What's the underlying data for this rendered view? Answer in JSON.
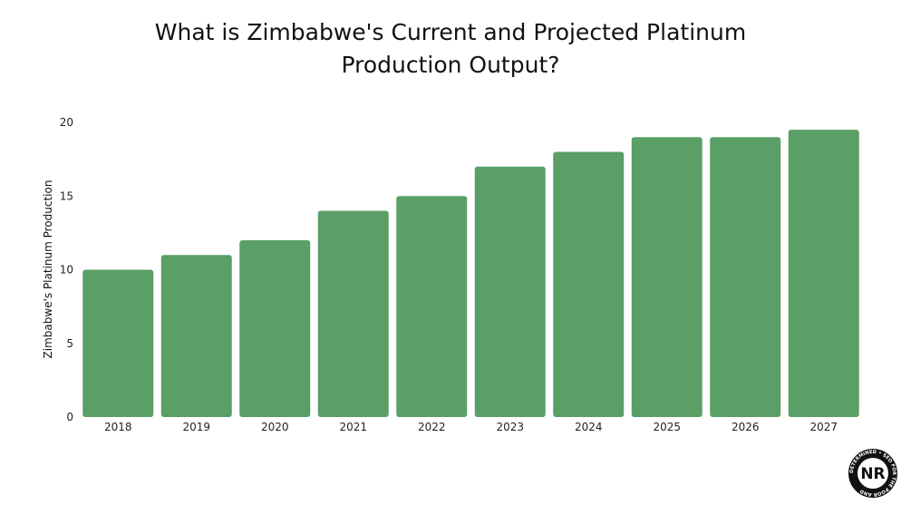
{
  "chart_data": {
    "type": "bar",
    "title_lines": [
      "What is Zimbabwe's Current and Projected Platinum",
      "Production Output?"
    ],
    "xlabel": "",
    "ylabel": "Zimbabwe's Platinum Production",
    "categories": [
      "2018",
      "2019",
      "2020",
      "2021",
      "2022",
      "2023",
      "2024",
      "2025",
      "2026",
      "2027"
    ],
    "values": [
      10,
      11,
      12,
      14,
      15,
      17,
      18,
      19,
      19,
      19.5
    ],
    "ylim": [
      0,
      20
    ],
    "yticks": [
      "0",
      "5",
      "10",
      "15",
      "20"
    ],
    "grid": false,
    "legend": "none",
    "bar_color": "#5a9f66"
  },
  "logo": {
    "letters": "NR",
    "ring_text": "DETERMINED • SEO FOR THE POOR AND"
  }
}
